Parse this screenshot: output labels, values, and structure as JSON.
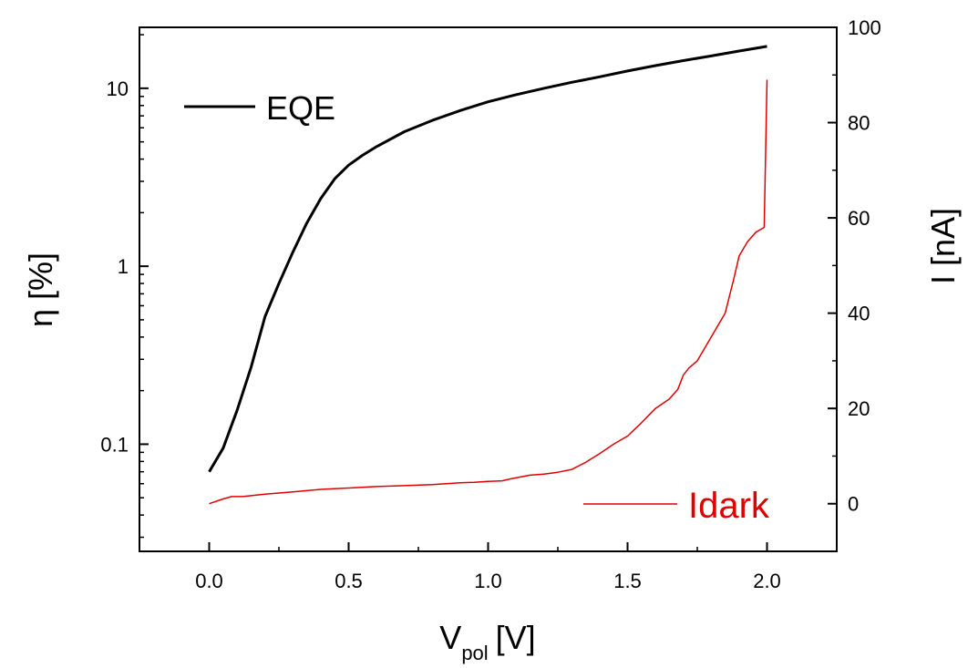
{
  "chart_data": {
    "type": "line",
    "xlabel": "V",
    "xlabel_sub": "pol",
    "xlabel_unit": "[V]",
    "y_left_label": "η [%]",
    "y_right_label": "I [nA]",
    "xlim": [
      -0.25,
      2.25
    ],
    "x_ticks": [
      {
        "value": 0.0,
        "label": "0.0"
      },
      {
        "value": 0.5,
        "label": "0.5"
      },
      {
        "value": 1.0,
        "label": "1.0"
      },
      {
        "value": 1.5,
        "label": "1.5"
      },
      {
        "value": 2.0,
        "label": "2.0"
      }
    ],
    "y_left_scale": "log",
    "y_left_lim": [
      0.025,
      22
    ],
    "y_left_ticks": [
      {
        "value": 0.1,
        "label": "0.1"
      },
      {
        "value": 1,
        "label": "1"
      },
      {
        "value": 10,
        "label": "10"
      }
    ],
    "y_right_lim": [
      -10,
      100
    ],
    "y_right_ticks": [
      {
        "value": 0,
        "label": "0"
      },
      {
        "value": 20,
        "label": "20"
      },
      {
        "value": 40,
        "label": "40"
      },
      {
        "value": 60,
        "label": "60"
      },
      {
        "value": 80,
        "label": "80"
      },
      {
        "value": 100,
        "label": "100"
      }
    ],
    "legend_placement": "EQE top-left, Idark bottom-right",
    "grid": false,
    "series": [
      {
        "name": "EQE",
        "axis": "left",
        "color": "#000000",
        "x": [
          0.0,
          0.05,
          0.1,
          0.15,
          0.2,
          0.25,
          0.3,
          0.35,
          0.4,
          0.45,
          0.5,
          0.55,
          0.6,
          0.7,
          0.8,
          0.9,
          1.0,
          1.1,
          1.2,
          1.3,
          1.4,
          1.5,
          1.6,
          1.7,
          1.8,
          1.9,
          2.0
        ],
        "y": [
          0.07,
          0.095,
          0.155,
          0.27,
          0.52,
          0.8,
          1.2,
          1.75,
          2.4,
          3.1,
          3.7,
          4.2,
          4.7,
          5.7,
          6.6,
          7.5,
          8.4,
          9.2,
          10.0,
          10.8,
          11.6,
          12.5,
          13.4,
          14.3,
          15.2,
          16.2,
          17.2
        ]
      },
      {
        "name": "Idark",
        "axis": "right",
        "color": "#e00000",
        "x": [
          0.0,
          0.05,
          0.08,
          0.12,
          0.2,
          0.3,
          0.4,
          0.5,
          0.6,
          0.7,
          0.8,
          0.9,
          0.95,
          1.0,
          1.05,
          1.08,
          1.15,
          1.2,
          1.25,
          1.3,
          1.35,
          1.4,
          1.45,
          1.5,
          1.55,
          1.6,
          1.65,
          1.68,
          1.7,
          1.72,
          1.75,
          1.8,
          1.85,
          1.88,
          1.9,
          1.93,
          1.96,
          1.99,
          2.0
        ],
        "y": [
          0.0,
          1.0,
          1.5,
          1.5,
          2.0,
          2.5,
          3.0,
          3.3,
          3.6,
          3.8,
          4.0,
          4.4,
          4.5,
          4.7,
          4.8,
          5.2,
          6.0,
          6.2,
          6.6,
          7.2,
          8.7,
          10.5,
          12.5,
          14.2,
          17.0,
          20.0,
          22.0,
          24.0,
          27.0,
          28.5,
          30.0,
          35.0,
          40.0,
          47.0,
          52.0,
          55.0,
          57.0,
          58.0,
          89.0
        ]
      }
    ]
  }
}
